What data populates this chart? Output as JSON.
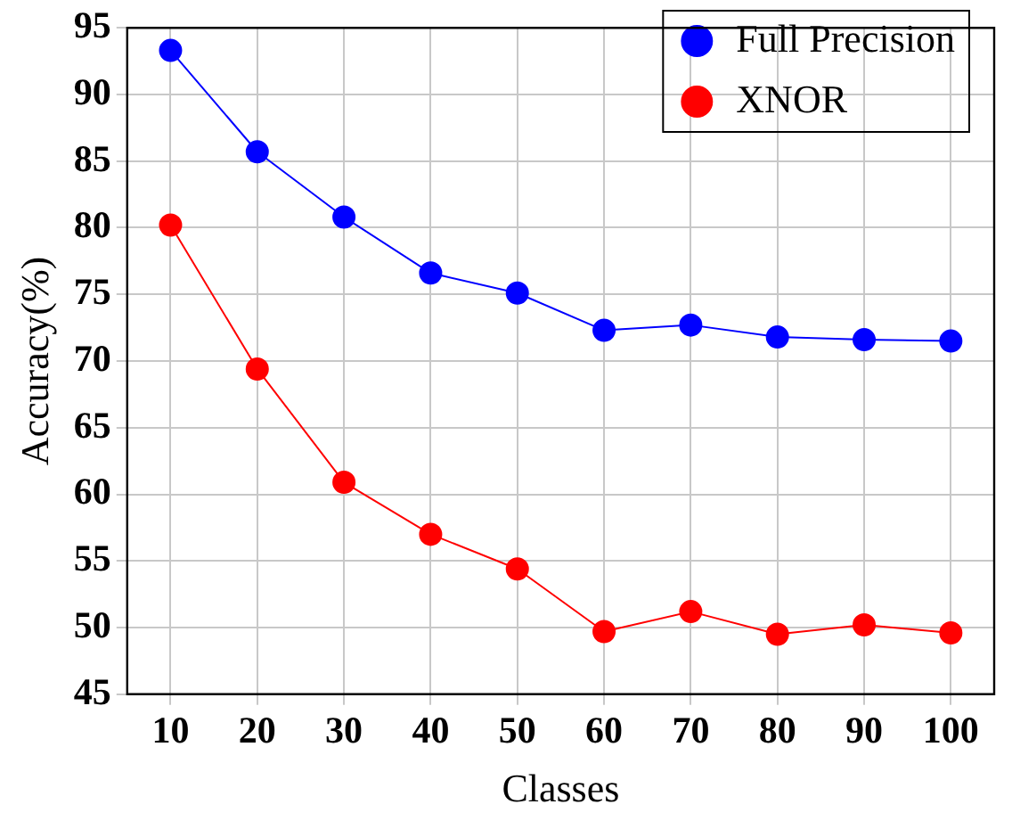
{
  "chart_data": {
    "type": "line",
    "xlabel": "Classes",
    "ylabel": "Accuracy(%)",
    "categories": [
      "10",
      "20",
      "30",
      "40",
      "50",
      "60",
      "70",
      "80",
      "90",
      "100"
    ],
    "series": [
      {
        "name": "Full Precision",
        "color": "#0000ff",
        "values": [
          93.3,
          85.7,
          80.8,
          76.6,
          75.1,
          72.3,
          72.7,
          71.8,
          71.6,
          71.5
        ]
      },
      {
        "name": "XNOR",
        "color": "#ff0000",
        "values": [
          80.2,
          69.4,
          60.9,
          57.0,
          54.4,
          49.7,
          51.2,
          49.5,
          50.2,
          49.6
        ]
      }
    ],
    "ylim": [
      45,
      95
    ],
    "yticks": [
      45,
      50,
      55,
      60,
      65,
      70,
      75,
      80,
      85,
      90,
      95
    ],
    "grid": true,
    "legend": "top right",
    "marker": "circle",
    "line_style": "solid"
  }
}
